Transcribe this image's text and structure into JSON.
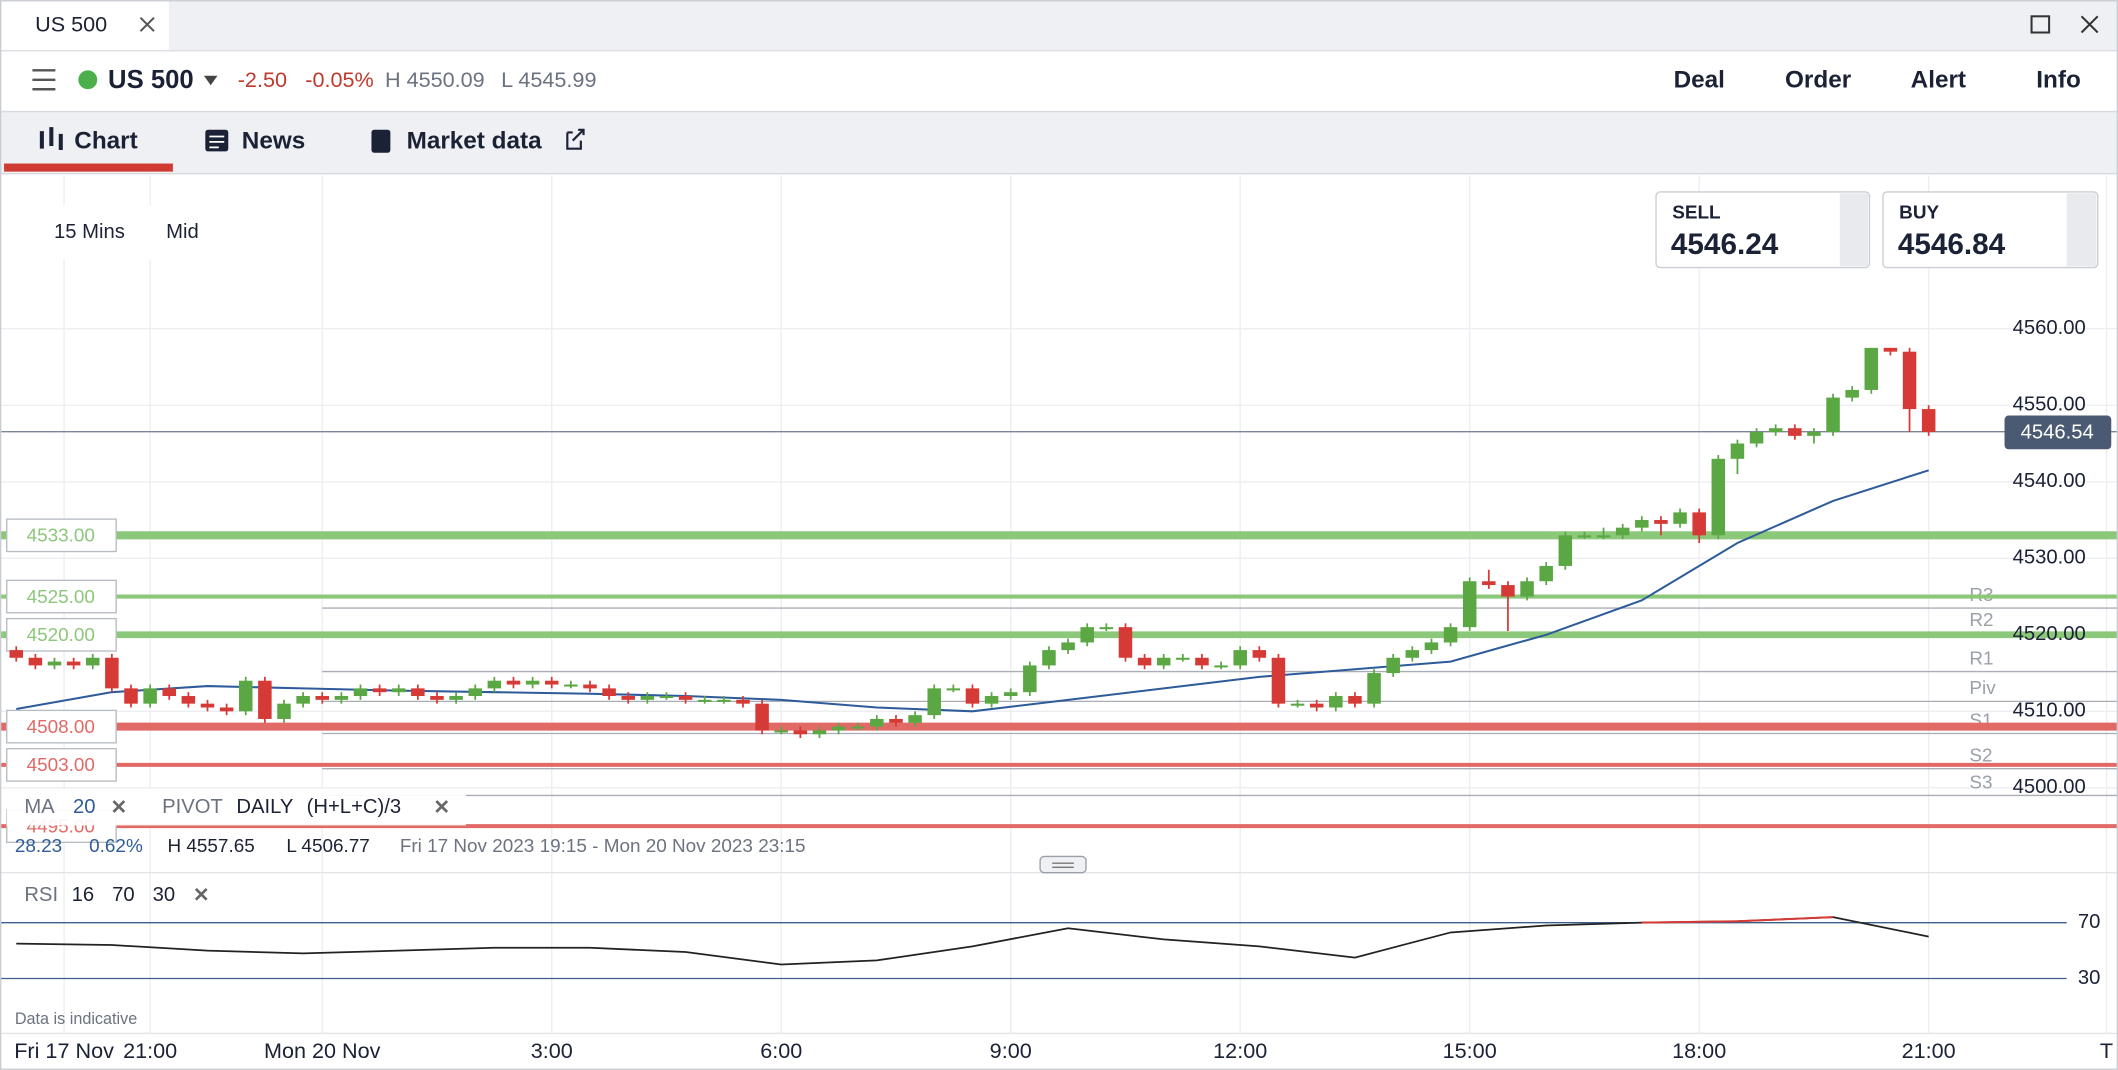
{
  "tab": "US 500",
  "header": {
    "market": "US 500",
    "change": "-2.50",
    "change_pct": "-0.05%",
    "high": "H 4550.09",
    "low": "L 4545.99",
    "actions": [
      "Deal",
      "Order",
      "Alert",
      "Info"
    ]
  },
  "nav": [
    "Chart",
    "News",
    "Market data"
  ],
  "interval": "15 Mins",
  "price_type": "Mid",
  "sell": {
    "label": "SELL",
    "price": "4546.24"
  },
  "buy": {
    "label": "BUY",
    "price": "4546.84"
  },
  "legend": {
    "pivot": "PIVOT",
    "pivot_period": "DAILY",
    "pivot_formula": "(H+L+C)/3"
  },
  "stats": {
    "range": "28.23",
    "range_pct": "0.62%",
    "high": "H 4557.65",
    "low": "L 4506.77",
    "period": "Fri 17 Nov 2023 19:15 - Mon 20 Nov 2023 23:15"
  },
  "note": "Data is indicative",
  "chart_data": {
    "type": "candlestick",
    "xlim": [
      -0.85,
      109.9
    ],
    "ylim": [
      4493.5,
      4580
    ],
    "xticks": [
      {
        "value": 2.5,
        "label": "Fri 17 Nov"
      },
      {
        "value": 7,
        "label": "21:00"
      },
      {
        "value": 16,
        "label": "Mon 20 Nov"
      },
      {
        "value": 28,
        "label": "3:00"
      },
      {
        "value": 40,
        "label": "6:00"
      },
      {
        "value": 52,
        "label": "9:00"
      },
      {
        "value": 64,
        "label": "12:00"
      },
      {
        "value": 76,
        "label": "15:00"
      },
      {
        "value": 88,
        "label": "18:00"
      },
      {
        "value": 100,
        "label": "21:00"
      },
      {
        "value": 109.3,
        "label": "T"
      }
    ],
    "yticks": [
      {
        "value": 4500,
        "label": "4500.00"
      },
      {
        "value": 4510,
        "label": "4510.00"
      },
      {
        "value": 4520,
        "label": "4520.00"
      },
      {
        "value": 4530,
        "label": "4530.00"
      },
      {
        "value": 4540,
        "label": "4540.00"
      },
      {
        "value": 4550,
        "label": "4550.00"
      },
      {
        "value": 4560,
        "label": "4560.00"
      }
    ],
    "grid": true,
    "up_color": "#5aa744",
    "down_color": "#d63a36",
    "open": [
      4518,
      4517,
      4516,
      4516.5,
      4516,
      4517,
      4513,
      4511,
      4513,
      4512,
      4511,
      4510.5,
      4510,
      4514,
      4509,
      4511,
      4512,
      4511.5,
      4512,
      4513,
      4512.5,
      4513,
      4512,
      4511.5,
      4512,
      4513,
      4514,
      4513.5,
      4514,
      4513.5,
      4513.5,
      4513,
      4512,
      4511.5,
      4512,
      4512,
      4511.5,
      4511.5,
      4511.5,
      4511,
      4507.5,
      4507.5,
      4507,
      4507.5,
      4508,
      4508,
      4509,
      4508.5,
      4509.5,
      4513,
      4513,
      4511,
      4512,
      4512.5,
      4516,
      4518,
      4519,
      4521,
      4521,
      4517,
      4516,
      4517,
      4517,
      4516,
      4516,
      4518,
      4517,
      4511,
      4511,
      4510.5,
      4512,
      4511,
      4515,
      4517,
      4518,
      4519,
      4521,
      4527,
      4526.5,
      4525,
      4527,
      4529,
      4533,
      4533,
      4533,
      4534,
      4535,
      4534.5,
      4536,
      4533,
      4543,
      4545,
      4546.5,
      4547,
      4546,
      4546.5,
      4551,
      4552,
      4557.5,
      4557,
      4549.5
    ],
    "high": [
      4518.5,
      4517.5,
      4517,
      4517,
      4517.5,
      4517.5,
      4513.5,
      4513.5,
      4513.5,
      4512.5,
      4511.5,
      4511,
      4514.5,
      4514.5,
      4511.5,
      4512.5,
      4512.5,
      4512.5,
      4513.5,
      4513.5,
      4513.5,
      4513.5,
      4512.5,
      4512.5,
      4513.5,
      4514.5,
      4514.5,
      4514.5,
      4514.5,
      4514,
      4514,
      4513.5,
      4512.5,
      4512.5,
      4512.5,
      4512.5,
      4512,
      4512,
      4512,
      4511.5,
      4508,
      4508,
      4508,
      4508.5,
      4508.5,
      4509.5,
      4509.5,
      4510,
      4513.5,
      4513.5,
      4513.5,
      4512.5,
      4513,
      4516.5,
      4518.5,
      4519.5,
      4521.5,
      4521.5,
      4521.5,
      4517.5,
      4517.5,
      4517.5,
      4517.5,
      4516.5,
      4518.5,
      4518.5,
      4517.5,
      4511.5,
      4511.5,
      4512.5,
      4512.5,
      4515.5,
      4517.5,
      4518.5,
      4519.5,
      4521.5,
      4527.5,
      4528.5,
      4527,
      4527.5,
      4529.5,
      4533.5,
      4533.5,
      4534,
      4534.5,
      4535.5,
      4535.5,
      4536.5,
      4536.5,
      4543.5,
      4545.5,
      4547,
      4547.5,
      4547.5,
      4547,
      4551.5,
      4552.5,
      4557.5,
      4557.5,
      4557.5,
      4550
    ],
    "low": [
      4516.5,
      4515.5,
      4515.5,
      4515.5,
      4515.5,
      4512.5,
      4510.5,
      4510.5,
      4511.5,
      4510.5,
      4510,
      4509.5,
      4509.5,
      4508.5,
      4508.5,
      4510.5,
      4511,
      4511,
      4511.5,
      4512,
      4512,
      4511.5,
      4511,
      4511,
      4511.5,
      4512.5,
      4513,
      4513,
      4513,
      4513,
      4512.5,
      4511.5,
      4511,
      4511,
      4511.5,
      4511,
      4511,
      4511,
      4510.5,
      4507,
      4507,
      4506.5,
      4506.5,
      4507,
      4507.5,
      4507.5,
      4508,
      4508,
      4509,
      4512.5,
      4510.5,
      4510.5,
      4511.5,
      4512,
      4515.5,
      4517.5,
      4518.5,
      4520.5,
      4516.5,
      4515.5,
      4515.5,
      4516.5,
      4515.5,
      4515.5,
      4515.5,
      4516.5,
      4510.5,
      4510.5,
      4510,
      4510,
      4510.5,
      4510.5,
      4514.5,
      4516.5,
      4517.5,
      4518.5,
      4520.5,
      4526,
      4520.5,
      4524.5,
      4526.5,
      4528.5,
      4532.5,
      4532.5,
      4532.5,
      4533.5,
      4533,
      4534,
      4532,
      4532.5,
      4541,
      4544.5,
      4546,
      4545.5,
      4545,
      4546,
      4550.5,
      4551.5,
      4556.5,
      4546.5,
      4546
    ],
    "close": [
      4517,
      4516,
      4516.5,
      4516,
      4517,
      4513,
      4511,
      4513,
      4512,
      4511,
      4510.5,
      4510,
      4514,
      4509,
      4511,
      4512,
      4511.5,
      4512,
      4513,
      4512.5,
      4513,
      4512,
      4511.5,
      4512,
      4513,
      4514,
      4513.5,
      4514,
      4513.5,
      4513.5,
      4513,
      4512,
      4511.5,
      4512,
      4512,
      4511.5,
      4511.5,
      4511.5,
      4511,
      4507.5,
      4507.5,
      4507,
      4507.5,
      4508,
      4508,
      4509,
      4508.5,
      4509.5,
      4513,
      4513,
      4511,
      4512,
      4512.5,
      4516,
      4518,
      4519,
      4521,
      4521,
      4517,
      4516,
      4517,
      4517,
      4516,
      4516,
      4518,
      4517,
      4511,
      4511,
      4510.5,
      4512,
      4511,
      4515,
      4517,
      4518,
      4519,
      4521,
      4527,
      4526.5,
      4525,
      4527,
      4529,
      4533,
      4533,
      4533,
      4534,
      4535,
      4534.5,
      4536,
      4533,
      4543,
      4545,
      4546.5,
      4547,
      4546,
      4546.5,
      4551,
      4552,
      4557.5,
      4557,
      4549.5,
      4546.5
    ],
    "ma": {
      "name": "MA",
      "period": 20,
      "color": "#2e5b9a",
      "x": [
        0,
        5,
        10,
        15,
        20,
        25,
        30,
        35,
        40,
        45,
        50,
        55,
        60,
        65,
        70,
        75,
        80,
        85,
        90,
        95,
        100
      ],
      "values": [
        4510.3,
        4512.5,
        4513.3,
        4513,
        4512.7,
        4512.5,
        4512.3,
        4512,
        4511.5,
        4510.5,
        4510,
        4511.5,
        4513,
        4514.5,
        4515.5,
        4516.5,
        4520,
        4524.5,
        4532,
        4537.5,
        4541.5
      ]
    },
    "levels": [
      {
        "value": 4533,
        "label": "4533.00",
        "color": "#8cc87a",
        "width": 6
      },
      {
        "value": 4525,
        "label": "4525.00",
        "color": "#8cc87a",
        "width": 3
      },
      {
        "value": 4520,
        "label": "4520.00",
        "color": "#8cc87a",
        "width": 5
      },
      {
        "value": 4508,
        "label": "4508.00",
        "color": "#e26a66",
        "width": 6
      },
      {
        "value": 4503,
        "label": "4503.00",
        "color": "#e26a66",
        "width": 3
      },
      {
        "value": 4495,
        "label": "4495.00",
        "color": "#e26a66",
        "width": 3
      }
    ],
    "pivots": [
      {
        "name": "R3",
        "value": 4523.5
      },
      {
        "name": "R2",
        "value": 4520.2
      },
      {
        "name": "R1",
        "value": 4515.2
      },
      {
        "name": "Piv",
        "value": 4511.3
      },
      {
        "name": "S1",
        "value": 4507.1
      },
      {
        "name": "S2",
        "value": 4502.5
      },
      {
        "name": "S3",
        "value": 4499
      }
    ],
    "current": {
      "value": 4546.54,
      "label": "4546.54"
    },
    "rsi": {
      "name": "RSI",
      "period": 16,
      "upper": 70,
      "lower": 30,
      "ylim": [
        10,
        100
      ],
      "yticks": [
        30,
        70
      ],
      "color": "#222222",
      "overbought_color": "#d63a36",
      "x": [
        0,
        5,
        10,
        15,
        20,
        25,
        30,
        35,
        40,
        45,
        50,
        55,
        60,
        65,
        70,
        75,
        80,
        85,
        90,
        95,
        100
      ],
      "values": [
        55,
        54,
        50,
        48,
        50,
        52,
        52,
        49,
        40,
        43,
        53,
        66,
        58,
        53,
        45,
        63,
        68,
        70,
        71,
        74,
        60
      ]
    }
  }
}
